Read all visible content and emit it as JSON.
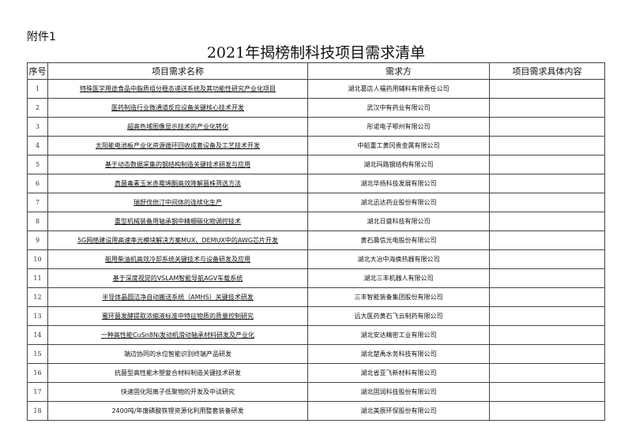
{
  "attachment": "附件1",
  "title": "2021年揭榜制科技项目需求清单",
  "headers": [
    "序号",
    "项目需求名称",
    "需求方",
    "项目需求具体内容"
  ],
  "rows": [
    {
      "no": "1",
      "name": "特殊医学用途食品中脂质组分稳态递送系统及其功能性研究产业化项目",
      "party": "湖北葛店人福药用辅料有限责任公司",
      "content": "",
      "underlined": true
    },
    {
      "no": "2",
      "name": "医药制造行业微通道反应设备关键核心技术开发",
      "party": "武汉中有药业有限公司",
      "content": "",
      "underlined": true
    },
    {
      "no": "3",
      "name": "超高色域图像显示技术的产业化转化",
      "party": "彤诺电子鄂州有限公司",
      "content": "",
      "underlined": true
    },
    {
      "no": "4",
      "name": "太阳能电池板产业化资源循环回收成套设备及工艺技术开发",
      "party": "中船重工黄冈贵金属有限公司",
      "content": "",
      "underlined": true
    },
    {
      "no": "5",
      "name": "基于动态数据采集的钢结构制造关键技术研发与应用",
      "party": "湖北玛路钢结构有限公司",
      "content": "",
      "underlined": true
    },
    {
      "no": "6",
      "name": "真菌毒素玉米赤霉烯酮高效降解菌株筛选方法",
      "party": "湖北华扬科技发展有限公司",
      "content": "",
      "underlined": true
    },
    {
      "no": "7",
      "name": "瑞舒伐他汀中间体的连续化生产",
      "party": "湖北迅达药业股份有限公司",
      "content": "",
      "underlined": true
    },
    {
      "no": "8",
      "name": "重型机械装备用轴承钢中精细碳化物调控技术",
      "party": "湖北日盛科技有限公司",
      "content": "",
      "underlined": true
    },
    {
      "no": "9",
      "name": "5G网络建设用高速率光模块解决方案MUX、DEMUX中的AWG芯片开发",
      "party": "黄石晨信光电股份有限公司",
      "content": "",
      "underlined": true
    },
    {
      "no": "10",
      "name": "船用柴油机高效冷却系统关键技术与设备研发及应用",
      "party": "湖北大冶中海换热器有限公司",
      "content": "",
      "underlined": true
    },
    {
      "no": "11",
      "name": "基于深度视觉的VSLAM智能导航AGV车载系统",
      "party": "湖北三丰机器人有限公司",
      "content": "",
      "underlined": true
    },
    {
      "no": "12",
      "name": "半导体晶圆洁净自动搬送系统（AMHS）关键技术研发",
      "party": "三丰智能装备集团股份有限公司",
      "content": "",
      "underlined": true
    },
    {
      "no": "13",
      "name": "蜜环菌发酵提取浓缩液标准中特征物质的质量控制研究",
      "party": "远大医药黄石飞云制药有限公司",
      "content": "",
      "underlined": true
    },
    {
      "no": "14",
      "name": "一种高性能CuSn8Ni发动机滑动轴承材料研发及产业化",
      "party": "湖北安达精密工业有限公司",
      "content": "",
      "underlined": true
    },
    {
      "no": "15",
      "name": "端边协同的水位智能识别终端产品研发",
      "party": "湖北楚禹水务科技有限公司",
      "content": "",
      "underlined": false
    },
    {
      "no": "16",
      "name": "抗菌型高性能木塑复合材料制造关键技术研发",
      "party": "湖北省亚飞新材料有限公司",
      "content": "",
      "underlined": false
    },
    {
      "no": "17",
      "name": "快速固化阳离子低聚物的开发及中试研究",
      "party": "湖北固润科技股份有限公司",
      "content": "",
      "underlined": false
    },
    {
      "no": "18",
      "name": "2400吨/年废磷酸铁锂资源化利用整套装备研发",
      "party": "湖北美辰环保股份有限公司",
      "content": "",
      "underlined": false
    }
  ]
}
